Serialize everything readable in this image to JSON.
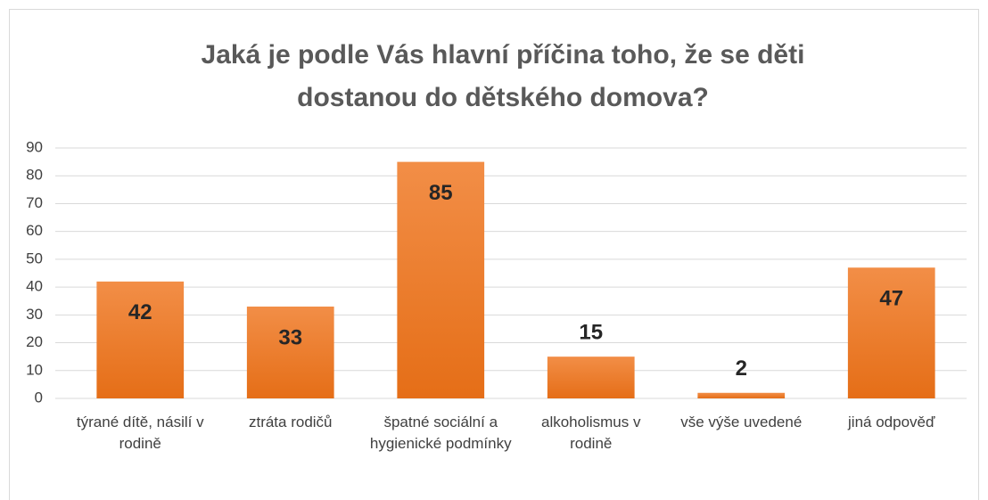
{
  "chart_data": {
    "type": "bar",
    "title": "Jaká je podle Vás hlavní příčina toho, že se děti dostanou do dětského domova?",
    "categories": [
      "týrané dítě, násilí v rodině",
      "ztráta rodičů",
      "špatné sociální a hygienické podmínky",
      "alkoholismus v rodině",
      "vše výše uvedené",
      "jiná odpověď"
    ],
    "values": [
      42,
      33,
      85,
      15,
      2,
      47
    ],
    "color": "#ed7d31",
    "ylim": [
      0,
      90
    ],
    "yticks": [
      0,
      10,
      20,
      30,
      40,
      50,
      60,
      70,
      80,
      90
    ],
    "grid": true
  }
}
